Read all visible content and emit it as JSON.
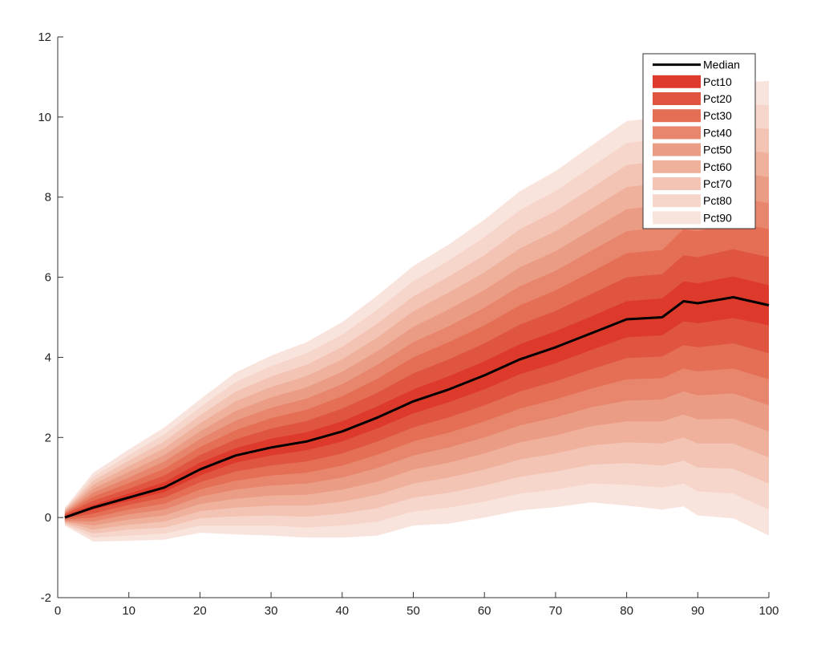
{
  "chart_data": {
    "type": "area",
    "title": "",
    "xlabel": "",
    "ylabel": "",
    "xlim": [
      0,
      100
    ],
    "ylim": [
      -2,
      12
    ],
    "xticks": [
      0,
      10,
      20,
      30,
      40,
      50,
      60,
      70,
      80,
      90,
      100
    ],
    "yticks": [
      -2,
      0,
      2,
      4,
      6,
      8,
      10,
      12
    ],
    "xtick_labels": [
      "0",
      "10",
      "20",
      "30",
      "40",
      "50",
      "60",
      "70",
      "80",
      "90",
      "100"
    ],
    "ytick_labels": [
      "-2",
      "0",
      "2",
      "4",
      "6",
      "8",
      "10",
      "12"
    ],
    "grid": false,
    "legend_position": "top-right",
    "legend": [
      "Median",
      "Pct10",
      "Pct20",
      "Pct30",
      "Pct40",
      "Pct50",
      "Pct60",
      "Pct70",
      "Pct80",
      "Pct90"
    ],
    "x": [
      1,
      5,
      10,
      15,
      20,
      25,
      30,
      35,
      40,
      45,
      50,
      55,
      60,
      65,
      70,
      75,
      80,
      85,
      88,
      90,
      95,
      100
    ],
    "median": {
      "name": "Median",
      "color": "#000000",
      "values": [
        0.0,
        0.25,
        0.5,
        0.75,
        1.2,
        1.55,
        1.75,
        1.9,
        2.15,
        2.5,
        2.9,
        3.2,
        3.55,
        3.95,
        4.25,
        4.6,
        4.95,
        5.0,
        5.4,
        5.35,
        5.5,
        5.3
      ]
    },
    "bands": [
      {
        "name": "Pct10",
        "color": "#dd3a2c",
        "lower": [
          0.0,
          0.2,
          0.42,
          0.64,
          1.05,
          1.37,
          1.55,
          1.68,
          1.9,
          2.23,
          2.6,
          2.88,
          3.2,
          3.58,
          3.85,
          4.18,
          4.5,
          4.55,
          4.9,
          4.85,
          4.98,
          4.8
        ],
        "upper": [
          0.05,
          0.32,
          0.6,
          0.88,
          1.37,
          1.73,
          1.97,
          2.13,
          2.4,
          2.78,
          3.2,
          3.53,
          3.9,
          4.33,
          4.65,
          5.02,
          5.4,
          5.47,
          5.9,
          5.85,
          6.02,
          5.8
        ]
      },
      {
        "name": "Pct20",
        "color": "#e05540",
        "lower": [
          -0.02,
          0.1,
          0.32,
          0.5,
          0.88,
          1.15,
          1.3,
          1.4,
          1.6,
          1.9,
          2.25,
          2.5,
          2.8,
          3.15,
          3.4,
          3.7,
          3.98,
          4.02,
          4.3,
          4.25,
          4.35,
          4.1
        ],
        "upper": [
          0.08,
          0.42,
          0.72,
          1.05,
          1.56,
          1.95,
          2.22,
          2.41,
          2.72,
          3.12,
          3.6,
          3.95,
          4.35,
          4.82,
          5.16,
          5.58,
          6.0,
          6.08,
          6.55,
          6.5,
          6.7,
          6.5
        ]
      },
      {
        "name": "Pct30",
        "color": "#e46f54",
        "lower": [
          -0.05,
          0.0,
          0.2,
          0.35,
          0.7,
          0.92,
          1.05,
          1.12,
          1.3,
          1.57,
          1.9,
          2.12,
          2.4,
          2.72,
          2.95,
          3.22,
          3.45,
          3.48,
          3.72,
          3.65,
          3.72,
          3.45
        ],
        "upper": [
          0.1,
          0.52,
          0.86,
          1.22,
          1.76,
          2.18,
          2.48,
          2.69,
          3.03,
          3.47,
          4.0,
          4.38,
          4.8,
          5.3,
          5.67,
          6.13,
          6.6,
          6.68,
          7.2,
          7.15,
          7.38,
          7.2
        ]
      },
      {
        "name": "Pct40",
        "color": "#e8866d",
        "lower": [
          -0.08,
          -0.1,
          0.08,
          0.2,
          0.52,
          0.7,
          0.8,
          0.85,
          1.0,
          1.24,
          1.55,
          1.75,
          2.0,
          2.3,
          2.5,
          2.75,
          2.92,
          2.95,
          3.15,
          3.05,
          3.1,
          2.8
        ],
        "upper": [
          0.12,
          0.62,
          1.0,
          1.4,
          1.96,
          2.42,
          2.74,
          2.97,
          3.33,
          3.82,
          4.38,
          4.78,
          5.24,
          5.78,
          6.16,
          6.66,
          7.15,
          7.25,
          7.8,
          7.75,
          8.0,
          7.85
        ]
      },
      {
        "name": "Pct50",
        "color": "#eb9c85",
        "lower": [
          -0.1,
          -0.2,
          -0.05,
          0.05,
          0.34,
          0.47,
          0.55,
          0.57,
          0.7,
          0.9,
          1.2,
          1.37,
          1.6,
          1.88,
          2.05,
          2.28,
          2.4,
          2.4,
          2.57,
          2.45,
          2.47,
          2.15
        ],
        "upper": [
          0.15,
          0.72,
          1.14,
          1.56,
          2.15,
          2.66,
          3.0,
          3.25,
          3.64,
          4.16,
          4.76,
          5.2,
          5.68,
          6.25,
          6.65,
          7.18,
          7.7,
          7.8,
          8.4,
          8.35,
          8.62,
          8.5
        ]
      },
      {
        "name": "Pct60",
        "color": "#efb09c",
        "lower": [
          -0.12,
          -0.3,
          -0.18,
          -0.1,
          0.16,
          0.25,
          0.3,
          0.3,
          0.4,
          0.57,
          0.85,
          1.0,
          1.2,
          1.45,
          1.6,
          1.8,
          1.88,
          1.85,
          2.0,
          1.85,
          1.85,
          1.5
        ],
        "upper": [
          0.18,
          0.82,
          1.28,
          1.73,
          2.35,
          2.9,
          3.26,
          3.53,
          3.95,
          4.5,
          5.15,
          5.62,
          6.12,
          6.72,
          7.15,
          7.7,
          8.25,
          8.35,
          8.95,
          8.9,
          9.2,
          9.1
        ]
      },
      {
        "name": "Pct70",
        "color": "#f3c3b3",
        "lower": [
          -0.15,
          -0.4,
          -0.3,
          -0.25,
          -0.02,
          0.03,
          0.05,
          0.02,
          0.1,
          0.24,
          0.5,
          0.62,
          0.8,
          1.02,
          1.15,
          1.32,
          1.36,
          1.3,
          1.42,
          1.25,
          1.22,
          0.85
        ],
        "upper": [
          0.2,
          0.92,
          1.42,
          1.9,
          2.55,
          3.14,
          3.52,
          3.81,
          4.26,
          4.85,
          5.52,
          6.02,
          6.55,
          7.2,
          7.65,
          8.22,
          8.8,
          8.9,
          9.5,
          9.45,
          9.75,
          9.7
        ]
      },
      {
        "name": "Pct80",
        "color": "#f6d5ca",
        "lower": [
          -0.18,
          -0.5,
          -0.45,
          -0.4,
          -0.2,
          -0.2,
          -0.2,
          -0.25,
          -0.2,
          -0.1,
          0.15,
          0.25,
          0.4,
          0.6,
          0.7,
          0.85,
          0.82,
          0.75,
          0.85,
          0.65,
          0.6,
          0.2
        ],
        "upper": [
          0.22,
          1.02,
          1.56,
          2.08,
          2.75,
          3.38,
          3.78,
          4.1,
          4.57,
          5.2,
          5.9,
          6.42,
          7.0,
          7.68,
          8.15,
          8.75,
          9.35,
          9.45,
          10.05,
          10.0,
          10.3,
          10.3
        ]
      },
      {
        "name": "Pct90",
        "color": "#f9e4dd",
        "lower": [
          -0.2,
          -0.6,
          -0.58,
          -0.55,
          -0.38,
          -0.42,
          -0.45,
          -0.5,
          -0.5,
          -0.45,
          -0.2,
          -0.15,
          0.0,
          0.18,
          0.26,
          0.38,
          0.3,
          0.2,
          0.28,
          0.05,
          -0.02,
          -0.45
        ],
        "upper": [
          0.25,
          1.12,
          1.7,
          2.25,
          2.95,
          3.62,
          4.04,
          4.38,
          4.88,
          5.55,
          6.28,
          6.82,
          7.44,
          8.15,
          8.65,
          9.28,
          9.9,
          10.0,
          10.6,
          10.55,
          10.85,
          10.9
        ]
      }
    ]
  }
}
